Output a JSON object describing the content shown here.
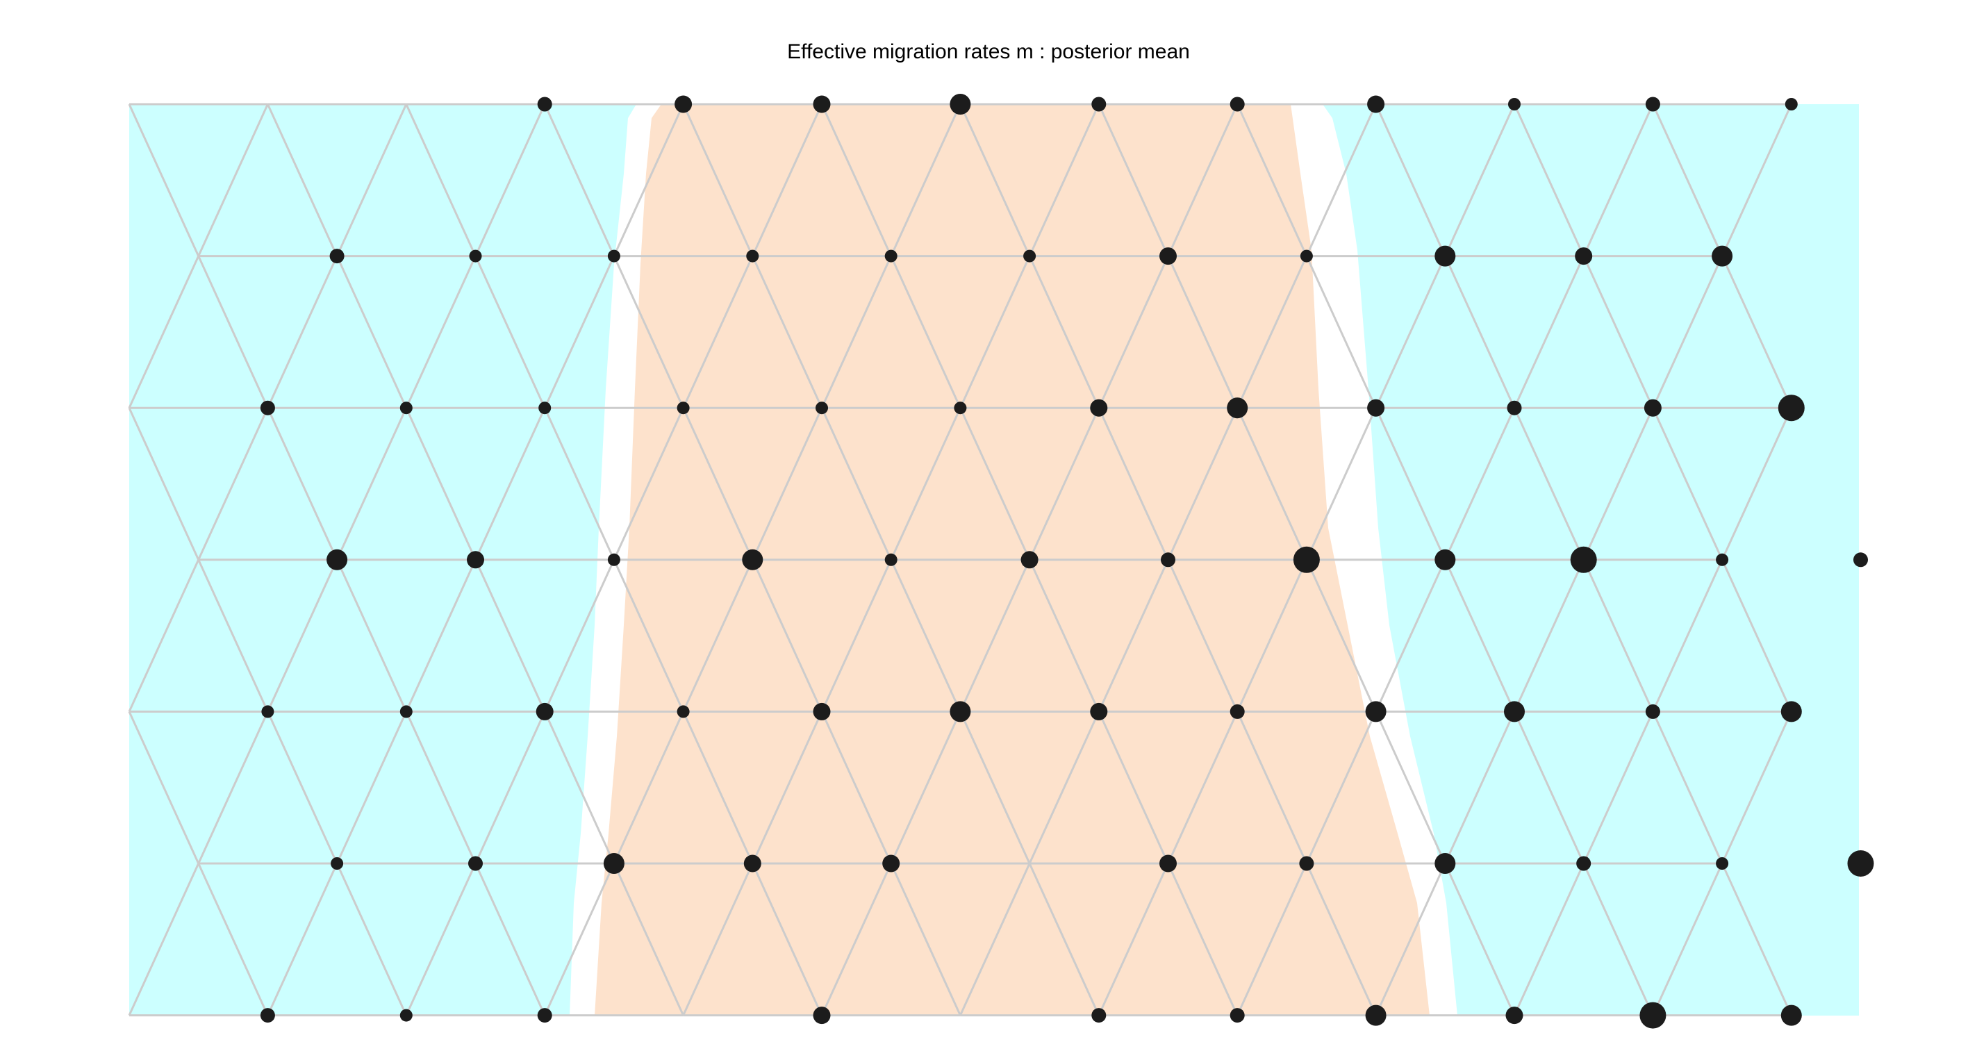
{
  "title": "Effective migration rates m : posterior mean",
  "colors": {
    "low_region": "#ccffff",
    "high_region": "#fde2cc",
    "grid_edge": "#cccccc",
    "node": "#1c1c1c",
    "background": "#ffffff"
  },
  "grid": {
    "columns": 13,
    "rows": 7,
    "layout": "triangular lattice, odd rows offset by half a column"
  },
  "nodes": [
    {
      "row": 0,
      "col": 3,
      "size": "small"
    },
    {
      "row": 0,
      "col": 4,
      "size": "medium"
    },
    {
      "row": 0,
      "col": 5,
      "size": "medium"
    },
    {
      "row": 0,
      "col": 6,
      "size": "large"
    },
    {
      "row": 0,
      "col": 7,
      "size": "small"
    },
    {
      "row": 0,
      "col": 8,
      "size": "small"
    },
    {
      "row": 0,
      "col": 9,
      "size": "medium"
    },
    {
      "row": 0,
      "col": 10,
      "size": "xsmall"
    },
    {
      "row": 0,
      "col": 11,
      "size": "small"
    },
    {
      "row": 0,
      "col": 12,
      "size": "xsmall"
    },
    {
      "row": 1,
      "col": 1,
      "size": "small"
    },
    {
      "row": 1,
      "col": 2,
      "size": "xsmall"
    },
    {
      "row": 1,
      "col": 3,
      "size": "xsmall"
    },
    {
      "row": 1,
      "col": 4,
      "size": "xsmall"
    },
    {
      "row": 1,
      "col": 5,
      "size": "xsmall"
    },
    {
      "row": 1,
      "col": 6,
      "size": "xsmall"
    },
    {
      "row": 1,
      "col": 7,
      "size": "medium"
    },
    {
      "row": 1,
      "col": 8,
      "size": "xsmall"
    },
    {
      "row": 1,
      "col": 9,
      "size": "large"
    },
    {
      "row": 1,
      "col": 10,
      "size": "medium"
    },
    {
      "row": 1,
      "col": 11,
      "size": "large"
    },
    {
      "row": 2,
      "col": 1,
      "size": "small"
    },
    {
      "row": 2,
      "col": 2,
      "size": "xsmall"
    },
    {
      "row": 2,
      "col": 3,
      "size": "xsmall"
    },
    {
      "row": 2,
      "col": 4,
      "size": "xsmall"
    },
    {
      "row": 2,
      "col": 5,
      "size": "xsmall"
    },
    {
      "row": 2,
      "col": 6,
      "size": "xsmall"
    },
    {
      "row": 2,
      "col": 7,
      "size": "medium"
    },
    {
      "row": 2,
      "col": 8,
      "size": "large"
    },
    {
      "row": 2,
      "col": 9,
      "size": "medium"
    },
    {
      "row": 2,
      "col": 10,
      "size": "small"
    },
    {
      "row": 2,
      "col": 11,
      "size": "medium"
    },
    {
      "row": 2,
      "col": 12,
      "size": "xlarge"
    },
    {
      "row": 3,
      "col": 1,
      "size": "large"
    },
    {
      "row": 3,
      "col": 2,
      "size": "medium"
    },
    {
      "row": 3,
      "col": 3,
      "size": "xsmall"
    },
    {
      "row": 3,
      "col": 4,
      "size": "large"
    },
    {
      "row": 3,
      "col": 5,
      "size": "xsmall"
    },
    {
      "row": 3,
      "col": 6,
      "size": "medium"
    },
    {
      "row": 3,
      "col": 7,
      "size": "small"
    },
    {
      "row": 3,
      "col": 8,
      "size": "xlarge"
    },
    {
      "row": 3,
      "col": 9,
      "size": "large"
    },
    {
      "row": 3,
      "col": 10,
      "size": "xlarge"
    },
    {
      "row": 3,
      "col": 11,
      "size": "xsmall"
    },
    {
      "row": 3,
      "col": 12,
      "size": "small"
    },
    {
      "row": 4,
      "col": 1,
      "size": "xsmall"
    },
    {
      "row": 4,
      "col": 2,
      "size": "xsmall"
    },
    {
      "row": 4,
      "col": 3,
      "size": "medium"
    },
    {
      "row": 4,
      "col": 4,
      "size": "xsmall"
    },
    {
      "row": 4,
      "col": 5,
      "size": "medium"
    },
    {
      "row": 4,
      "col": 6,
      "size": "large"
    },
    {
      "row": 4,
      "col": 7,
      "size": "medium"
    },
    {
      "row": 4,
      "col": 8,
      "size": "small"
    },
    {
      "row": 4,
      "col": 9,
      "size": "large"
    },
    {
      "row": 4,
      "col": 10,
      "size": "large"
    },
    {
      "row": 4,
      "col": 11,
      "size": "small"
    },
    {
      "row": 4,
      "col": 12,
      "size": "large"
    },
    {
      "row": 5,
      "col": 1,
      "size": "xsmall"
    },
    {
      "row": 5,
      "col": 2,
      "size": "small"
    },
    {
      "row": 5,
      "col": 3,
      "size": "large"
    },
    {
      "row": 5,
      "col": 4,
      "size": "medium"
    },
    {
      "row": 5,
      "col": 5,
      "size": "medium"
    },
    {
      "row": 5,
      "col": 7,
      "size": "medium"
    },
    {
      "row": 5,
      "col": 8,
      "size": "small"
    },
    {
      "row": 5,
      "col": 9,
      "size": "large"
    },
    {
      "row": 5,
      "col": 10,
      "size": "small"
    },
    {
      "row": 5,
      "col": 11,
      "size": "xsmall"
    },
    {
      "row": 5,
      "col": 12,
      "size": "xlarge"
    },
    {
      "row": 6,
      "col": 1,
      "size": "small"
    },
    {
      "row": 6,
      "col": 2,
      "size": "xsmall"
    },
    {
      "row": 6,
      "col": 3,
      "size": "small"
    },
    {
      "row": 6,
      "col": 5,
      "size": "medium"
    },
    {
      "row": 6,
      "col": 7,
      "size": "small"
    },
    {
      "row": 6,
      "col": 8,
      "size": "small"
    },
    {
      "row": 6,
      "col": 9,
      "size": "large"
    },
    {
      "row": 6,
      "col": 10,
      "size": "medium"
    },
    {
      "row": 6,
      "col": 11,
      "size": "xlarge"
    },
    {
      "row": 6,
      "col": 12,
      "size": "large"
    }
  ]
}
